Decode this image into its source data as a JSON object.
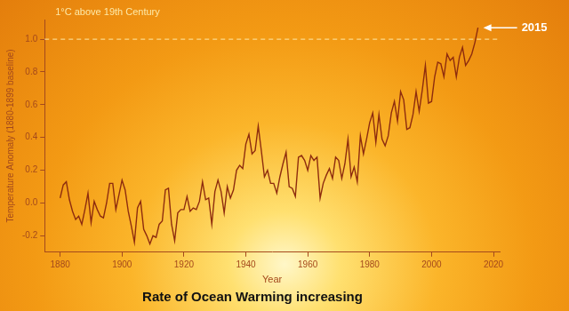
{
  "chart_data": {
    "type": "line",
    "title": "Rate of Ocean Warming increasing",
    "x_label": "Year",
    "y_label": "Temperature Anomaly (1880-1899 baseline)",
    "color": "#8e2c0e",
    "grid": false,
    "x": [
      1880,
      1881,
      1882,
      1883,
      1884,
      1885,
      1886,
      1887,
      1888,
      1889,
      1890,
      1891,
      1892,
      1893,
      1894,
      1895,
      1896,
      1897,
      1898,
      1899,
      1900,
      1901,
      1902,
      1903,
      1904,
      1905,
      1906,
      1907,
      1908,
      1909,
      1910,
      1911,
      1912,
      1913,
      1914,
      1915,
      1916,
      1917,
      1918,
      1919,
      1920,
      1921,
      1922,
      1923,
      1924,
      1925,
      1926,
      1927,
      1928,
      1929,
      1930,
      1931,
      1932,
      1933,
      1934,
      1935,
      1936,
      1937,
      1938,
      1939,
      1940,
      1941,
      1942,
      1943,
      1944,
      1945,
      1946,
      1947,
      1948,
      1949,
      1950,
      1951,
      1952,
      1953,
      1954,
      1955,
      1956,
      1957,
      1958,
      1959,
      1960,
      1961,
      1962,
      1963,
      1964,
      1965,
      1966,
      1967,
      1968,
      1969,
      1970,
      1971,
      1972,
      1973,
      1974,
      1975,
      1976,
      1977,
      1978,
      1979,
      1980,
      1981,
      1982,
      1983,
      1984,
      1985,
      1986,
      1987,
      1988,
      1989,
      1990,
      1991,
      1992,
      1993,
      1994,
      1995,
      1996,
      1997,
      1998,
      1999,
      2000,
      2001,
      2002,
      2003,
      2004,
      2005,
      2006,
      2007,
      2008,
      2009,
      2010,
      2011,
      2012,
      2013,
      2014,
      2015
    ],
    "values": [
      0.03,
      0.11,
      0.13,
      0.02,
      -0.05,
      -0.1,
      -0.08,
      -0.13,
      -0.04,
      0.06,
      -0.12,
      0.01,
      -0.04,
      -0.08,
      -0.09,
      0.0,
      0.12,
      0.12,
      -0.04,
      0.05,
      0.14,
      0.08,
      -0.05,
      -0.14,
      -0.24,
      -0.03,
      0.01,
      -0.16,
      -0.2,
      -0.25,
      -0.2,
      -0.21,
      -0.13,
      -0.11,
      0.08,
      0.09,
      -0.13,
      -0.23,
      -0.06,
      -0.04,
      -0.04,
      0.04,
      -0.05,
      -0.03,
      -0.04,
      0.01,
      0.13,
      0.02,
      0.03,
      -0.13,
      0.07,
      0.14,
      0.07,
      -0.06,
      0.1,
      0.03,
      0.08,
      0.2,
      0.23,
      0.21,
      0.36,
      0.42,
      0.3,
      0.32,
      0.47,
      0.32,
      0.16,
      0.2,
      0.12,
      0.12,
      0.06,
      0.16,
      0.24,
      0.31,
      0.1,
      0.09,
      0.04,
      0.28,
      0.29,
      0.26,
      0.2,
      0.29,
      0.26,
      0.28,
      0.03,
      0.12,
      0.17,
      0.21,
      0.15,
      0.28,
      0.26,
      0.15,
      0.24,
      0.39,
      0.16,
      0.22,
      0.13,
      0.41,
      0.3,
      0.39,
      0.49,
      0.55,
      0.37,
      0.54,
      0.39,
      0.35,
      0.41,
      0.55,
      0.62,
      0.5,
      0.68,
      0.63,
      0.45,
      0.46,
      0.54,
      0.68,
      0.56,
      0.69,
      0.84,
      0.61,
      0.62,
      0.77,
      0.86,
      0.85,
      0.77,
      0.91,
      0.87,
      0.89,
      0.77,
      0.89,
      0.95,
      0.84,
      0.87,
      0.91,
      0.98,
      1.07
    ],
    "xlim": [
      1875,
      2022
    ],
    "xticks": [
      1880,
      1900,
      1920,
      1940,
      1960,
      1980,
      2000,
      2020
    ],
    "ylim": [
      -0.3,
      1.12
    ],
    "yticks": [
      -0.2,
      {
        "value": 0,
        "label": "0.0"
      },
      0.2,
      0.4,
      0.6,
      0.8,
      {
        "value": 1,
        "label": "1.0"
      }
    ],
    "annotations": [
      {
        "text": "1°C above 19th Century",
        "y": 1,
        "line_style": "dashed",
        "color": "#fde9a8"
      },
      {
        "text": "2015",
        "x": 2015,
        "y": 1.07,
        "marker": "arrow",
        "color": "#ffffff"
      }
    ]
  }
}
